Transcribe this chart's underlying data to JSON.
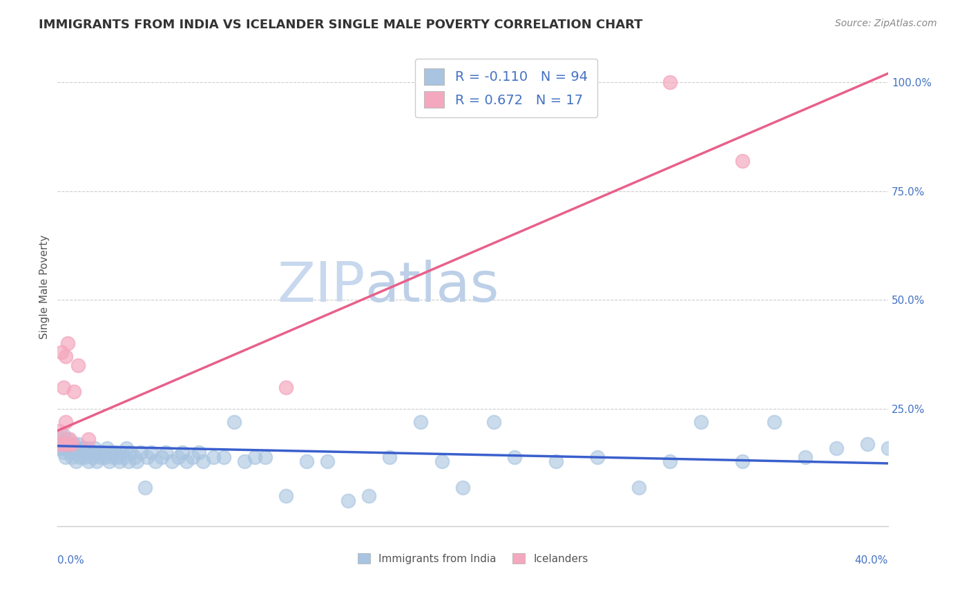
{
  "title": "IMMIGRANTS FROM INDIA VS ICELANDER SINGLE MALE POVERTY CORRELATION CHART",
  "source": "Source: ZipAtlas.com",
  "ylabel": "Single Male Poverty",
  "legend_india": "Immigrants from India",
  "legend_icelanders": "Icelanders",
  "r_india": "-0.110",
  "n_india": "94",
  "r_icelanders": "0.672",
  "n_icelanders": "17",
  "india_color": "#a8c4e0",
  "icelander_color": "#f4a8bf",
  "india_line_color": "#3a5fcd",
  "icelander_line_color": "#e8608a",
  "background_color": "#ffffff",
  "watermark_zip_color": "#c8d8ee",
  "watermark_atlas_color": "#c8d8ee",
  "xlim": [
    0.0,
    0.4
  ],
  "ylim": [
    -0.02,
    1.08
  ],
  "india_scatter_x": [
    0.001,
    0.001,
    0.002,
    0.002,
    0.003,
    0.003,
    0.003,
    0.004,
    0.004,
    0.005,
    0.005,
    0.006,
    0.006,
    0.007,
    0.007,
    0.008,
    0.008,
    0.009,
    0.009,
    0.01,
    0.01,
    0.011,
    0.012,
    0.012,
    0.013,
    0.013,
    0.014,
    0.015,
    0.015,
    0.016,
    0.017,
    0.018,
    0.018,
    0.019,
    0.02,
    0.021,
    0.022,
    0.023,
    0.024,
    0.025,
    0.026,
    0.027,
    0.028,
    0.029,
    0.03,
    0.031,
    0.032,
    0.033,
    0.034,
    0.035,
    0.037,
    0.038,
    0.04,
    0.042,
    0.043,
    0.045,
    0.047,
    0.05,
    0.052,
    0.055,
    0.058,
    0.06,
    0.062,
    0.065,
    0.068,
    0.07,
    0.075,
    0.08,
    0.085,
    0.09,
    0.095,
    0.1,
    0.11,
    0.12,
    0.13,
    0.14,
    0.15,
    0.16,
    0.175,
    0.185,
    0.195,
    0.21,
    0.22,
    0.24,
    0.26,
    0.28,
    0.295,
    0.31,
    0.33,
    0.345,
    0.36,
    0.375,
    0.39,
    0.4
  ],
  "india_scatter_y": [
    0.16,
    0.17,
    0.16,
    0.18,
    0.15,
    0.17,
    0.19,
    0.16,
    0.14,
    0.18,
    0.16,
    0.15,
    0.17,
    0.16,
    0.14,
    0.15,
    0.17,
    0.16,
    0.13,
    0.17,
    0.15,
    0.14,
    0.16,
    0.15,
    0.14,
    0.16,
    0.15,
    0.16,
    0.13,
    0.15,
    0.14,
    0.16,
    0.15,
    0.13,
    0.15,
    0.14,
    0.15,
    0.14,
    0.16,
    0.13,
    0.15,
    0.14,
    0.15,
    0.14,
    0.13,
    0.15,
    0.14,
    0.16,
    0.13,
    0.15,
    0.14,
    0.13,
    0.15,
    0.07,
    0.14,
    0.15,
    0.13,
    0.14,
    0.15,
    0.13,
    0.14,
    0.15,
    0.13,
    0.14,
    0.15,
    0.13,
    0.14,
    0.14,
    0.22,
    0.13,
    0.14,
    0.14,
    0.05,
    0.13,
    0.13,
    0.04,
    0.05,
    0.14,
    0.22,
    0.13,
    0.07,
    0.22,
    0.14,
    0.13,
    0.14,
    0.07,
    0.13,
    0.22,
    0.13,
    0.22,
    0.14,
    0.16,
    0.17,
    0.16
  ],
  "icelander_scatter_x": [
    0.001,
    0.001,
    0.002,
    0.003,
    0.003,
    0.004,
    0.004,
    0.005,
    0.005,
    0.006,
    0.007,
    0.008,
    0.01,
    0.015,
    0.11,
    0.295,
    0.33
  ],
  "icelander_scatter_y": [
    0.2,
    0.17,
    0.38,
    0.3,
    0.17,
    0.37,
    0.22,
    0.4,
    0.17,
    0.18,
    0.17,
    0.29,
    0.35,
    0.18,
    0.3,
    1.0,
    0.82
  ],
  "india_trend_x": [
    0.0,
    0.4
  ],
  "india_trend_y": [
    0.165,
    0.125
  ],
  "icelander_trend_x": [
    0.0,
    0.4
  ],
  "icelander_trend_y": [
    0.2,
    1.02
  ]
}
